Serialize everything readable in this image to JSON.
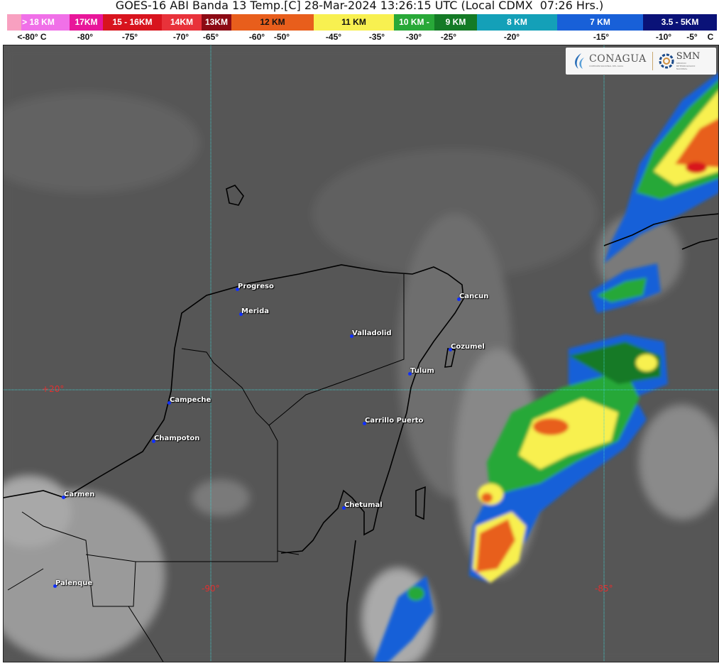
{
  "title": "GOES-16 ABI Banda 13 Temp.[C] 28-Mar-2024 13:26:15 UTC (Local CDMX  07:26 Hrs.)",
  "legend": {
    "segments": [
      {
        "label": "> 18 KM",
        "color": "#f070e8"
      },
      {
        "label": "17KM",
        "color": "#e8169a"
      },
      {
        "label": "15 - 16KM",
        "color": "#d8141e"
      },
      {
        "label": "14KM",
        "color": "#e8323a"
      },
      {
        "label": "13KM",
        "color": "#8c0a14"
      },
      {
        "label": "12 KM",
        "color": "#e85e1c"
      },
      {
        "label": "11 KM",
        "color": "#f8f050"
      },
      {
        "label": "10 KM -",
        "color": "#28a838"
      },
      {
        "label": "9 KM",
        "color": "#147a26"
      },
      {
        "label": "8 KM",
        "color": "#14a0b8"
      },
      {
        "label": "7 KM",
        "color": "#1860d8"
      },
      {
        "label": "3.5 - 5KM",
        "color": "#0a1278"
      }
    ],
    "temps": [
      "<-80° C",
      "-80°",
      "-75°",
      "-70°",
      "-65°",
      "-60°",
      "-50°",
      "-45°",
      "-35°",
      "-30°",
      "-25°",
      "-20°",
      "-15°",
      "-10°",
      "-5°",
      "C"
    ]
  },
  "logos": {
    "conagua": "CONAGUA",
    "conagua_sub": "COMISIÓN NACIONAL DEL AGUA",
    "smn": "SMN",
    "smn_sub": "SERVICIO METEOROLÓGICO NACIONAL"
  },
  "grid": {
    "lat": "+20°",
    "lon1": "-90°",
    "lon2": "-85°"
  },
  "cities": [
    "Progreso",
    "Merida",
    "Valladolid",
    "Cancun",
    "Cozumel",
    "Tulum",
    "Campeche",
    "Champoton",
    "Carrillo Puerto",
    "Carmen",
    "Chetumal",
    "Palenque"
  ]
}
